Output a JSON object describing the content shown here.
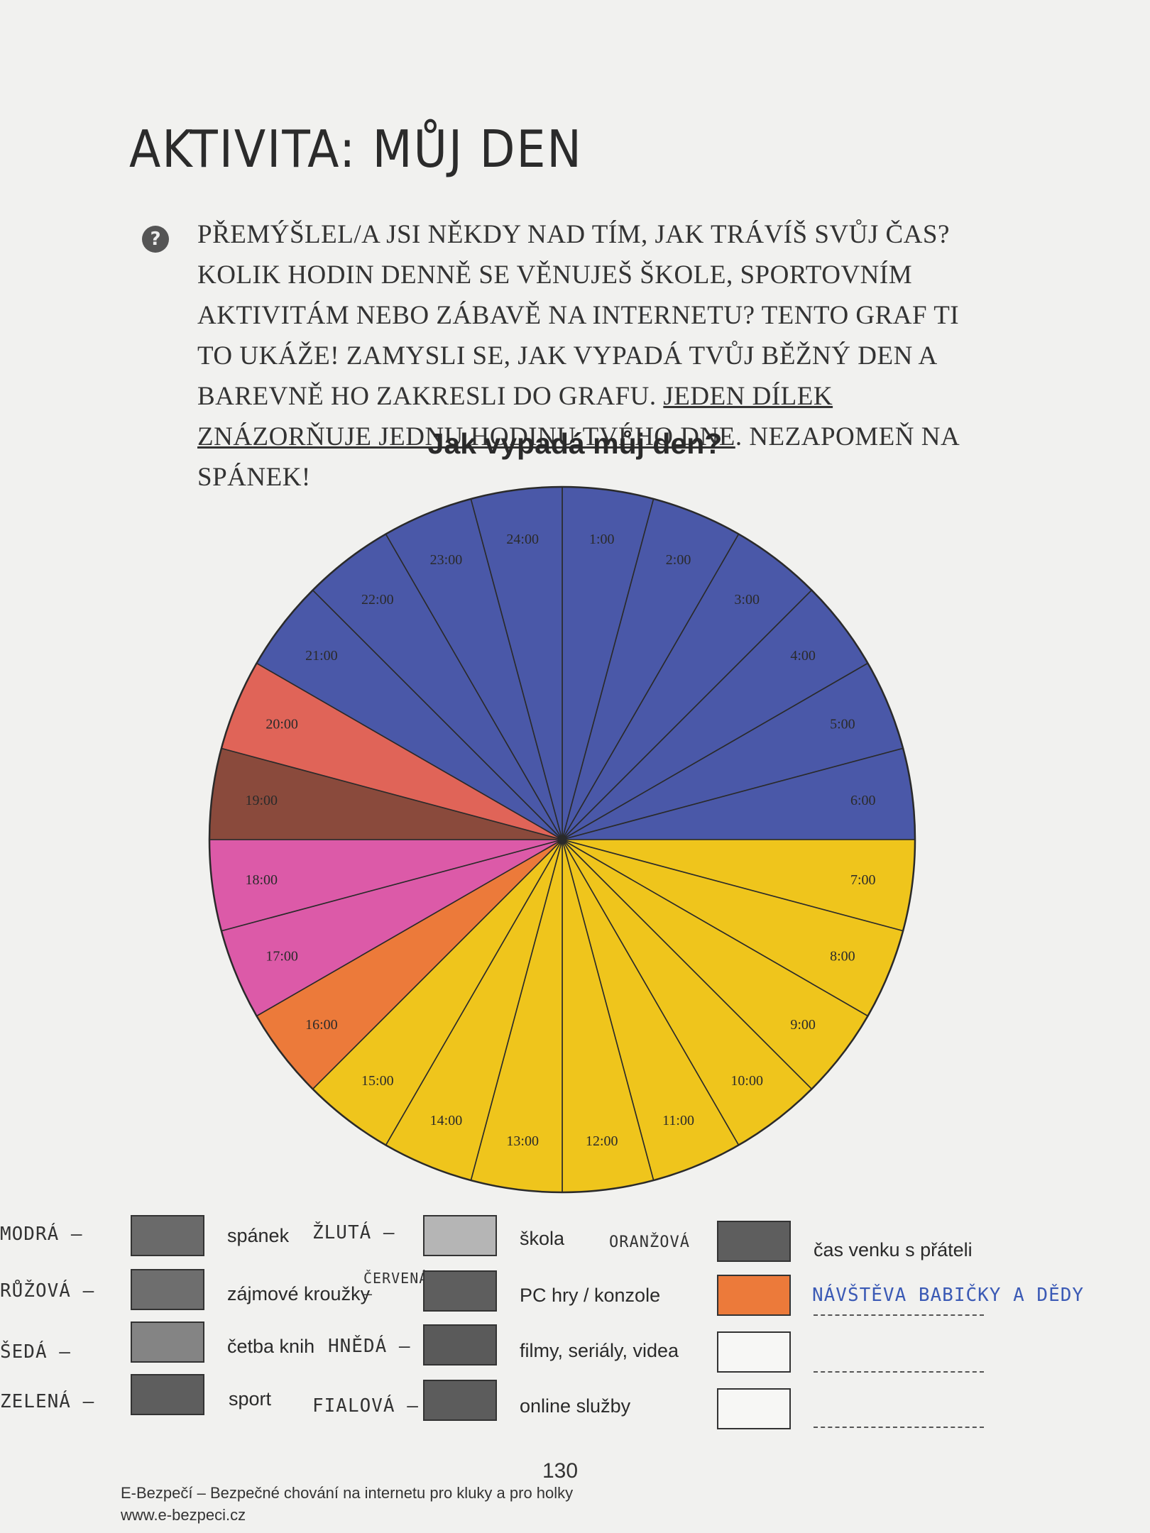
{
  "page": {
    "title": "AKTIVITA: MŮJ DEN",
    "question_icon": "?",
    "intro_1": "Přemýšlel/a jsi někdy nad tím, jak trávíš svůj čas? Kolik hodin denně se věnuješ škole, sportovním aktivitám nebo zábavě na internetu? Tento graf ti to ukáže! Zamysli se, jak vypadá tvůj běžný den a barevně ho zakresli do grafu. ",
    "intro_underlined": "Jeden dílek znázorňuje jednu hodinu tvého dne",
    "intro_2": ". Nezapomeň na spánek!",
    "page_number": "130",
    "footer_line1": "E-Bezpečí – Bezpečné chování na internetu pro kluky a pro holky",
    "footer_line2": "www.e-bezpeci.cz"
  },
  "chart_data": {
    "type": "pie",
    "title": "Jak vypadá můj den?",
    "unit": "hour",
    "slices": [
      {
        "label": "1:00",
        "value": 1,
        "color": "#4a58a8"
      },
      {
        "label": "2:00",
        "value": 1,
        "color": "#4a58a8"
      },
      {
        "label": "3:00",
        "value": 1,
        "color": "#4a58a8"
      },
      {
        "label": "4:00",
        "value": 1,
        "color": "#4a58a8"
      },
      {
        "label": "5:00",
        "value": 1,
        "color": "#4a58a8"
      },
      {
        "label": "6:00",
        "value": 1,
        "color": "#4a58a8"
      },
      {
        "label": "7:00",
        "value": 1,
        "color": "#efc51c"
      },
      {
        "label": "8:00",
        "value": 1,
        "color": "#efc51c"
      },
      {
        "label": "9:00",
        "value": 1,
        "color": "#efc51c"
      },
      {
        "label": "10:00",
        "value": 1,
        "color": "#efc51c"
      },
      {
        "label": "11:00",
        "value": 1,
        "color": "#efc51c"
      },
      {
        "label": "12:00",
        "value": 1,
        "color": "#efc51c"
      },
      {
        "label": "13:00",
        "value": 1,
        "color": "#efc51c"
      },
      {
        "label": "14:00",
        "value": 1,
        "color": "#efc51c"
      },
      {
        "label": "15:00",
        "value": 1,
        "color": "#efc51c"
      },
      {
        "label": "16:00",
        "value": 1,
        "color": "#ec7a3a"
      },
      {
        "label": "17:00",
        "value": 1,
        "color": "#dc5aa8"
      },
      {
        "label": "18:00",
        "value": 1,
        "color": "#dc5aa8"
      },
      {
        "label": "19:00",
        "value": 1,
        "color": "#8a4a3c"
      },
      {
        "label": "20:00",
        "value": 1,
        "color": "#e06458"
      },
      {
        "label": "21:00",
        "value": 1,
        "color": "#4a58a8"
      },
      {
        "label": "22:00",
        "value": 1,
        "color": "#4a58a8"
      },
      {
        "label": "23:00",
        "value": 1,
        "color": "#4a58a8"
      },
      {
        "label": "24:00",
        "value": 1,
        "color": "#4a58a8"
      }
    ]
  },
  "legend": {
    "col1": [
      {
        "hand": "MODRÁ –",
        "label": "spánek",
        "swatch": "#6a6a6a"
      },
      {
        "hand": "RŮŽOVÁ –",
        "label": "zájmové kroužky",
        "swatch": "#6e6e6e"
      },
      {
        "hand": "ŠEDÁ –",
        "label": "četba knih",
        "swatch": "#848484"
      },
      {
        "hand": "ZELENÁ –",
        "label": "sport",
        "swatch": "#5e5e5e"
      }
    ],
    "col2": [
      {
        "hand": "ŽLUTÁ –",
        "label": "škola",
        "swatch": "#b5b5b5"
      },
      {
        "hand": "ČERVENÁ –",
        "label": "PC hry / konzole",
        "swatch": "#5e5e5e"
      },
      {
        "hand": "HNĚDÁ –",
        "label": "filmy, seriály, videa",
        "swatch": "#5a5a5a"
      },
      {
        "hand": "FIALOVÁ –",
        "label": "online služby",
        "swatch": "#5c5c5c"
      }
    ],
    "col3": [
      {
        "hand": "ORANŽOVÁ",
        "label": "čas venku s přáteli",
        "swatch": "#5e5e5e"
      },
      {
        "hand": "",
        "label": "NÁVŠTĚVA BABIČKY A DĚDY",
        "swatch": "#ec7a3a"
      },
      {
        "hand": "",
        "label": "",
        "swatch": "#f7f7f5"
      },
      {
        "hand": "",
        "label": "",
        "swatch": "#f7f7f5"
      }
    ]
  }
}
